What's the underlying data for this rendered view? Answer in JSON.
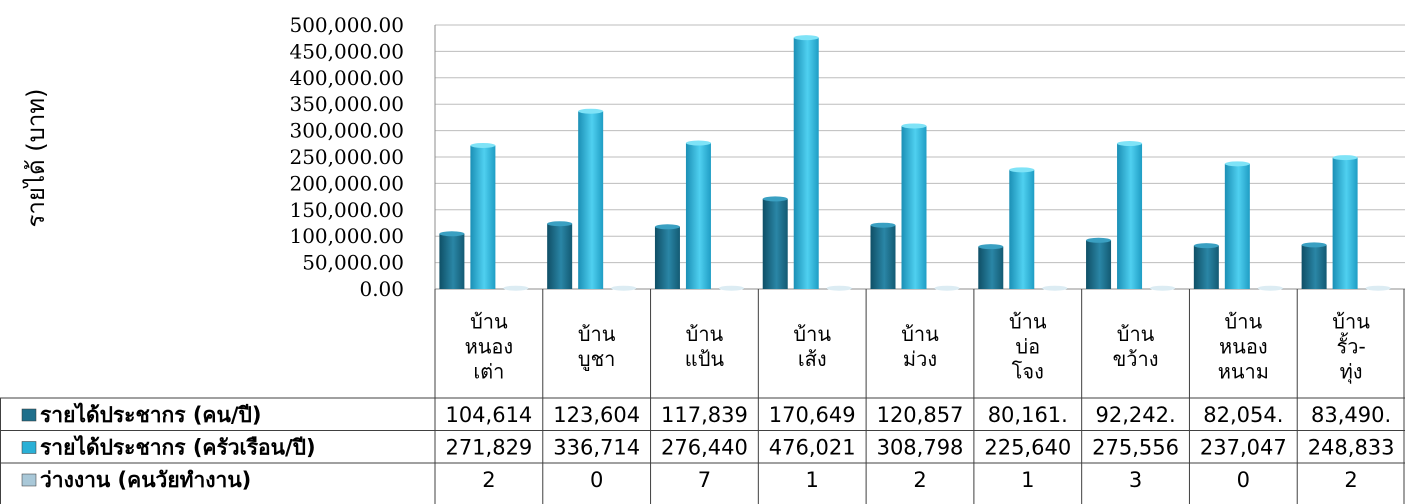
{
  "chart_data": {
    "type": "bar",
    "ylabel": "รายได้ (บาท)",
    "ylim": [
      0,
      500000
    ],
    "yticks": [
      "0.00",
      "50,000.00",
      "100,000.00",
      "150,000.00",
      "200,000.00",
      "250,000.00",
      "300,000.00",
      "350,000.00",
      "400,000.00",
      "450,000.00",
      "500,000.00"
    ],
    "grid": true,
    "categories": [
      [
        "บ้าน",
        "หนอง",
        "เต่า"
      ],
      [
        "บ้าน",
        "บูชา"
      ],
      [
        "บ้าน",
        "แป้น"
      ],
      [
        "บ้าน",
        "เส้ง"
      ],
      [
        "บ้าน",
        "ม่วง"
      ],
      [
        "บ้าน",
        "บ่อ",
        "โจง"
      ],
      [
        "บ้าน",
        "ขว้าง"
      ],
      [
        "บ้าน",
        "หนอง",
        "หนาม"
      ],
      [
        "บ้าน",
        "รั้ว-",
        "ทุ่ง"
      ]
    ],
    "series": [
      {
        "name": "รายได้ประชากร (คน/ปี)",
        "color": "#1f6f8b",
        "values": [
          104614,
          123604,
          117839,
          170649,
          120857,
          80161,
          92242,
          82054,
          83490
        ],
        "labels": [
          "104,614",
          "123,604",
          "117,839",
          "170,649",
          "120,857",
          "80,161.",
          "92,242.",
          "82,054.",
          "83,490."
        ]
      },
      {
        "name": "รายได้ประชากร (ครัวเรือน/ปี)",
        "color": "#2ab0d6",
        "values": [
          271829,
          336714,
          276440,
          476021,
          308798,
          225640,
          275556,
          237047,
          248833
        ],
        "labels": [
          "271,829",
          "336,714",
          "276,440",
          "476,021",
          "308,798",
          "225,640",
          "275,556",
          "237,047",
          "248,833"
        ]
      },
      {
        "name": "ว่างงาน (คนวัยทำงาน)",
        "color": "#a9c8d8",
        "values": [
          2,
          0,
          7,
          1,
          2,
          1,
          3,
          0,
          2
        ],
        "labels": [
          "2",
          "0",
          "7",
          "1",
          "2",
          "1",
          "3",
          "0",
          "2"
        ]
      }
    ]
  }
}
